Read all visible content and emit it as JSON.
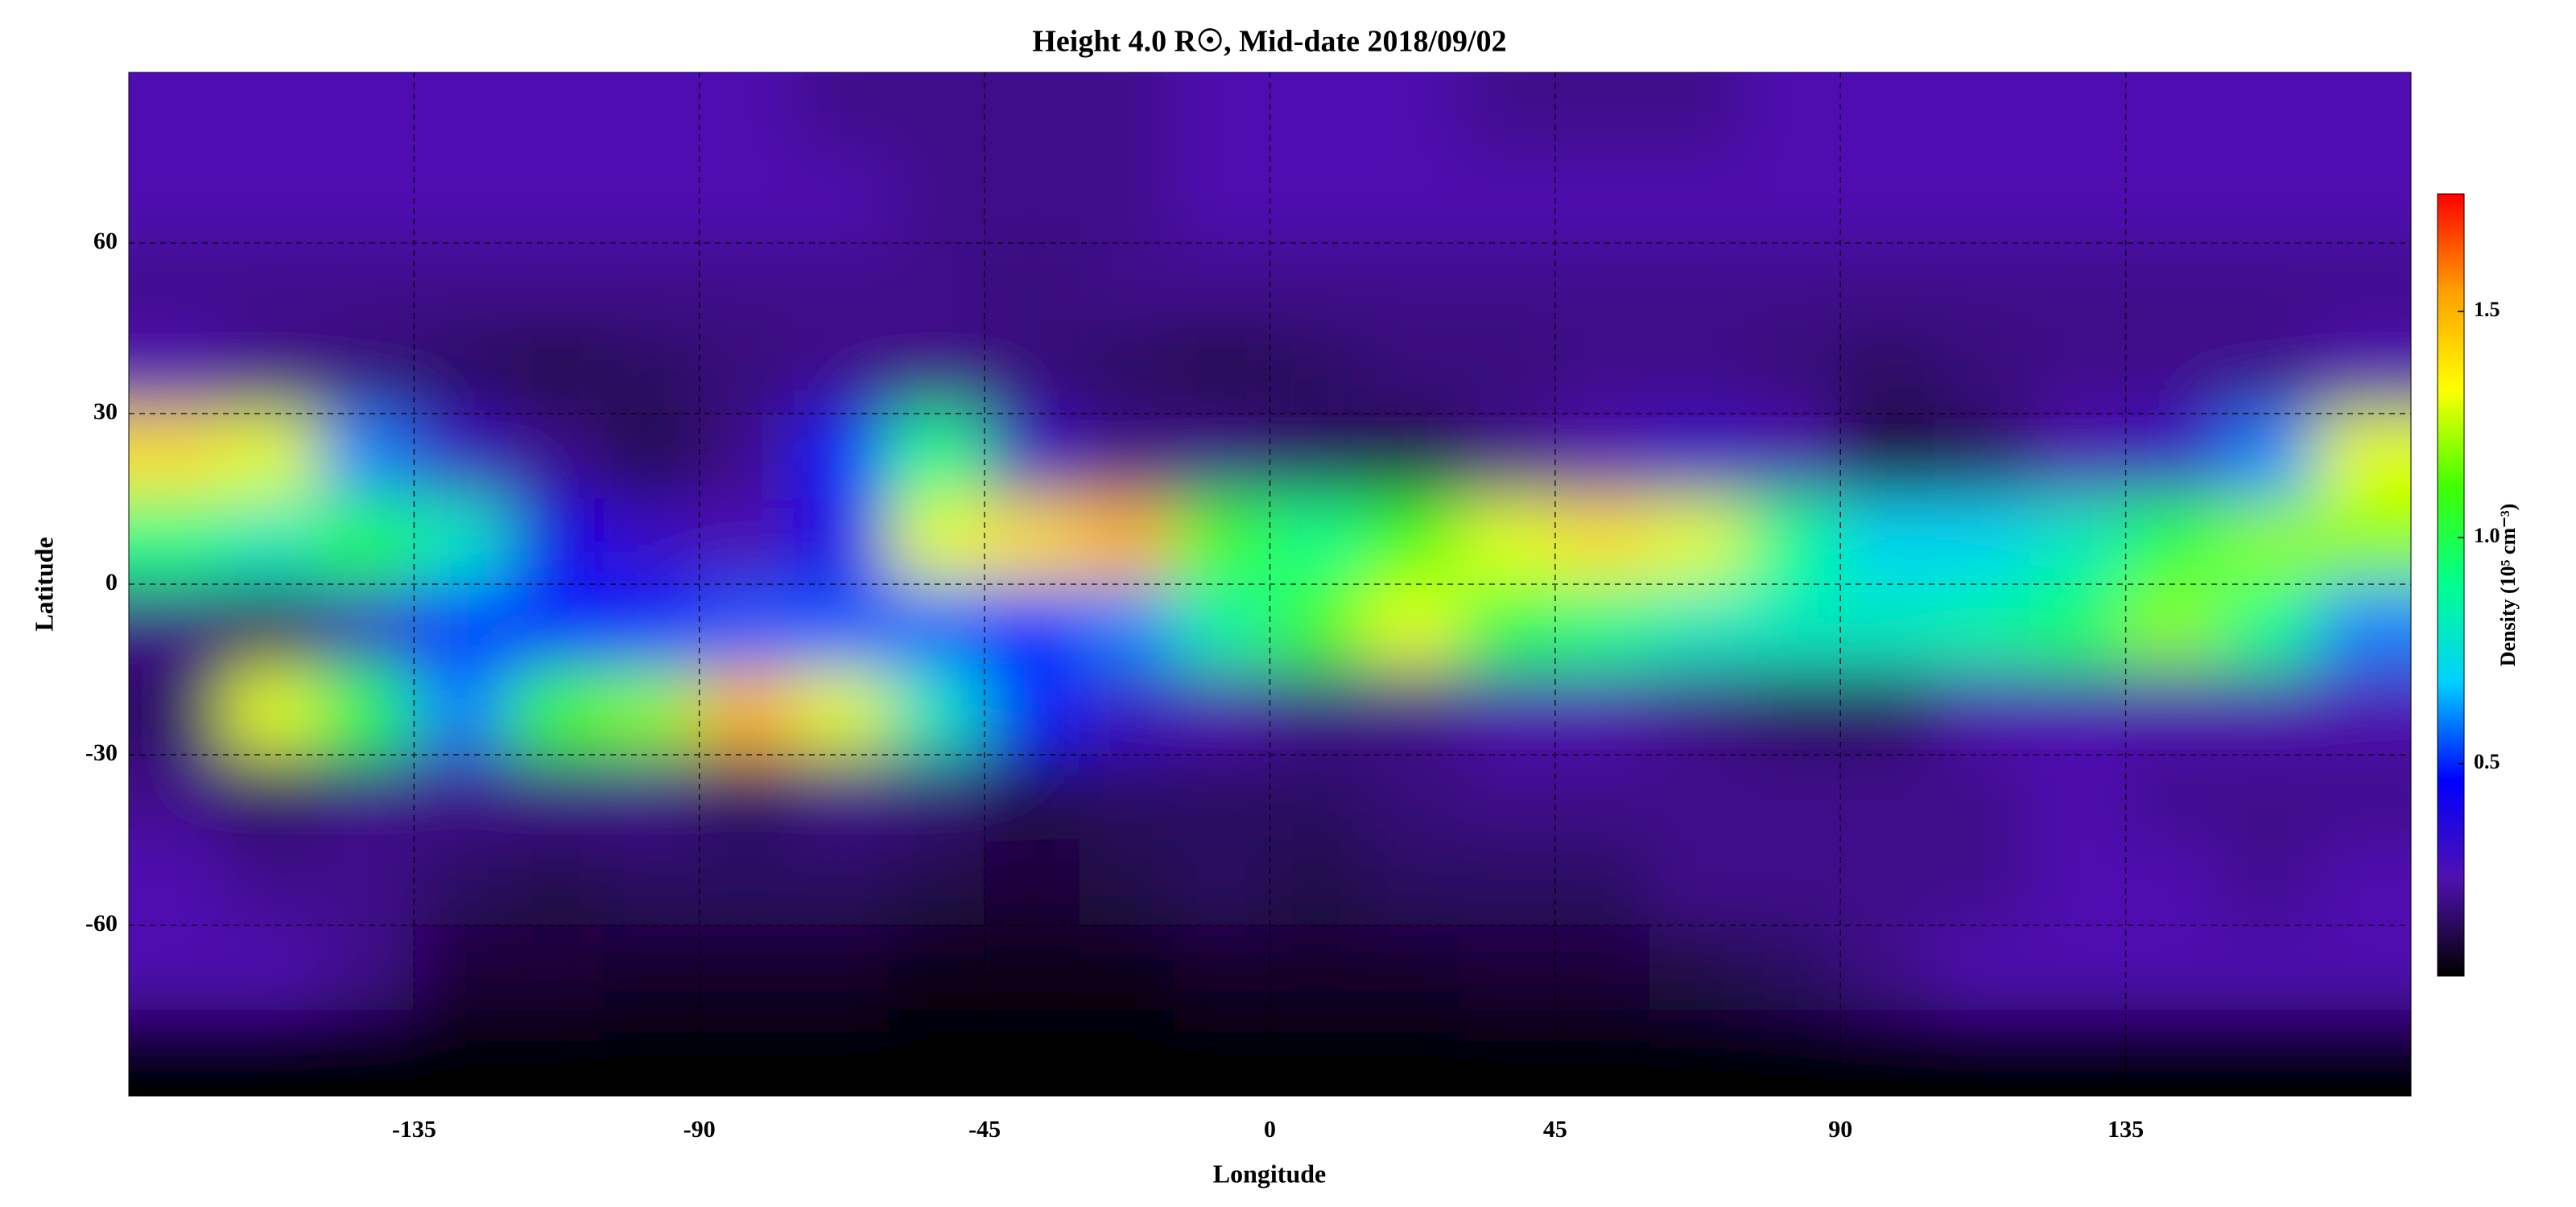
{
  "chart_data": {
    "type": "heatmap",
    "title": "Height 4.0 R☉, Mid-date 2018/09/02",
    "x_label": "Longitude",
    "y_label": "Latitude",
    "colorbar_label": "Density (10⁵ cm⁻³)",
    "xlim": [
      -180,
      180
    ],
    "xticks": [
      -135,
      -90,
      -45,
      0,
      45,
      90,
      135
    ],
    "ylim": [
      -90,
      90
    ],
    "yticks": [
      -60,
      -30,
      0,
      30,
      60
    ],
    "zlim": [
      0.03,
      1.76
    ],
    "zticks": [
      0.5,
      {
        "value": 1,
        "label": "1.0"
      },
      1.5
    ],
    "grid": true,
    "colormap": [
      "#000000",
      "#5010b0",
      "#0000ff",
      "#00d0ff",
      "#00ff90",
      "#40ff00",
      "#ffff00",
      "#ffa000",
      "#ff0000"
    ],
    "x": [
      -172.5,
      -157.5,
      -142.5,
      -127.5,
      -112.5,
      -97.5,
      -82.5,
      -67.5,
      -52.5,
      -37.5,
      -22.5,
      -7.5,
      7.5,
      22.5,
      37.5,
      52.5,
      67.5,
      82.5,
      97.5,
      112.5,
      127.5,
      142.5,
      157.5,
      172.5
    ],
    "y": [
      82.5,
      67.5,
      52.5,
      37.5,
      22.5,
      7.5,
      -7.5,
      -22.5,
      -37.5,
      -52.5,
      -67.5,
      -82.5
    ],
    "z": [
      [
        0.25,
        0.25,
        0.25,
        0.25,
        0.25,
        0.25,
        0.25,
        0.2,
        0.2,
        0.2,
        0.2,
        0.25,
        0.25,
        0.25,
        0.2,
        0.2,
        0.2,
        0.25,
        0.25,
        0.25,
        0.25,
        0.25,
        0.25,
        0.25
      ],
      [
        0.25,
        0.25,
        0.25,
        0.25,
        0.25,
        0.25,
        0.25,
        0.25,
        0.2,
        0.2,
        0.2,
        0.25,
        0.25,
        0.25,
        0.25,
        0.25,
        0.25,
        0.25,
        0.25,
        0.25,
        0.25,
        0.25,
        0.25,
        0.25
      ],
      [
        0.2,
        0.2,
        0.2,
        0.2,
        0.2,
        0.2,
        0.2,
        0.2,
        0.2,
        0.18,
        0.2,
        0.2,
        0.2,
        0.2,
        0.2,
        0.2,
        0.2,
        0.2,
        0.2,
        0.2,
        0.2,
        0.2,
        0.2,
        0.2
      ],
      [
        0.25,
        0.2,
        0.18,
        0.15,
        0.12,
        0.15,
        0.18,
        0.2,
        0.2,
        0.18,
        0.15,
        0.12,
        0.15,
        0.18,
        0.18,
        0.2,
        0.2,
        0.18,
        0.15,
        0.18,
        0.2,
        0.2,
        0.2,
        0.25
      ],
      [
        1.4,
        1.3,
        0.6,
        0.3,
        0.2,
        0.12,
        0.2,
        0.5,
        0.9,
        0.3,
        0.2,
        0.2,
        0.15,
        0.12,
        0.2,
        0.25,
        0.3,
        0.25,
        0.1,
        0.15,
        0.25,
        0.3,
        0.6,
        1.3
      ],
      [
        0.9,
        0.8,
        1.0,
        0.8,
        0.4,
        0.3,
        0.25,
        0.4,
        1.3,
        1.4,
        1.5,
        1.1,
        0.9,
        1.1,
        1.3,
        1.4,
        1.3,
        0.9,
        0.7,
        0.7,
        0.8,
        1.0,
        1.2,
        1.2
      ],
      [
        0.2,
        0.15,
        0.3,
        0.5,
        0.5,
        0.5,
        0.55,
        0.55,
        0.55,
        0.5,
        0.6,
        0.85,
        1.1,
        1.3,
        1.0,
        0.9,
        0.8,
        0.8,
        0.8,
        0.85,
        0.95,
        1.2,
        0.9,
        0.6
      ],
      [
        0.15,
        1.3,
        1.0,
        0.6,
        1.1,
        1.2,
        1.5,
        1.3,
        0.8,
        0.5,
        0.3,
        0.25,
        0.2,
        0.2,
        0.25,
        0.25,
        0.2,
        0.15,
        0.15,
        0.25,
        0.25,
        0.25,
        0.25,
        0.25
      ],
      [
        0.2,
        0.15,
        0.2,
        0.2,
        0.2,
        0.2,
        0.15,
        0.2,
        0.18,
        0.12,
        0.15,
        0.15,
        0.15,
        0.18,
        0.2,
        0.2,
        0.2,
        0.2,
        0.2,
        0.2,
        0.25,
        0.2,
        0.2,
        0.2
      ],
      [
        0.25,
        0.2,
        0.2,
        0.15,
        0.12,
        0.15,
        0.15,
        0.15,
        0.12,
        0.1,
        0.12,
        0.15,
        0.12,
        0.15,
        0.15,
        0.15,
        0.2,
        0.2,
        0.2,
        0.2,
        0.25,
        0.25,
        0.2,
        0.25
      ],
      [
        0.25,
        0.25,
        0.2,
        0.1,
        0.1,
        0.08,
        0.08,
        0.08,
        0.06,
        0.06,
        0.06,
        0.08,
        0.08,
        0.08,
        0.1,
        0.1,
        0.12,
        0.15,
        0.2,
        0.25,
        0.25,
        0.25,
        0.25,
        0.25
      ],
      [
        0.03,
        0.03,
        0.03,
        0.03,
        0.03,
        0.03,
        0.03,
        0.03,
        0.03,
        0.03,
        0.03,
        0.03,
        0.03,
        0.03,
        0.03,
        0.03,
        0.03,
        0.03,
        0.03,
        0.03,
        0.03,
        0.03,
        0.03,
        0.03
      ]
    ]
  }
}
